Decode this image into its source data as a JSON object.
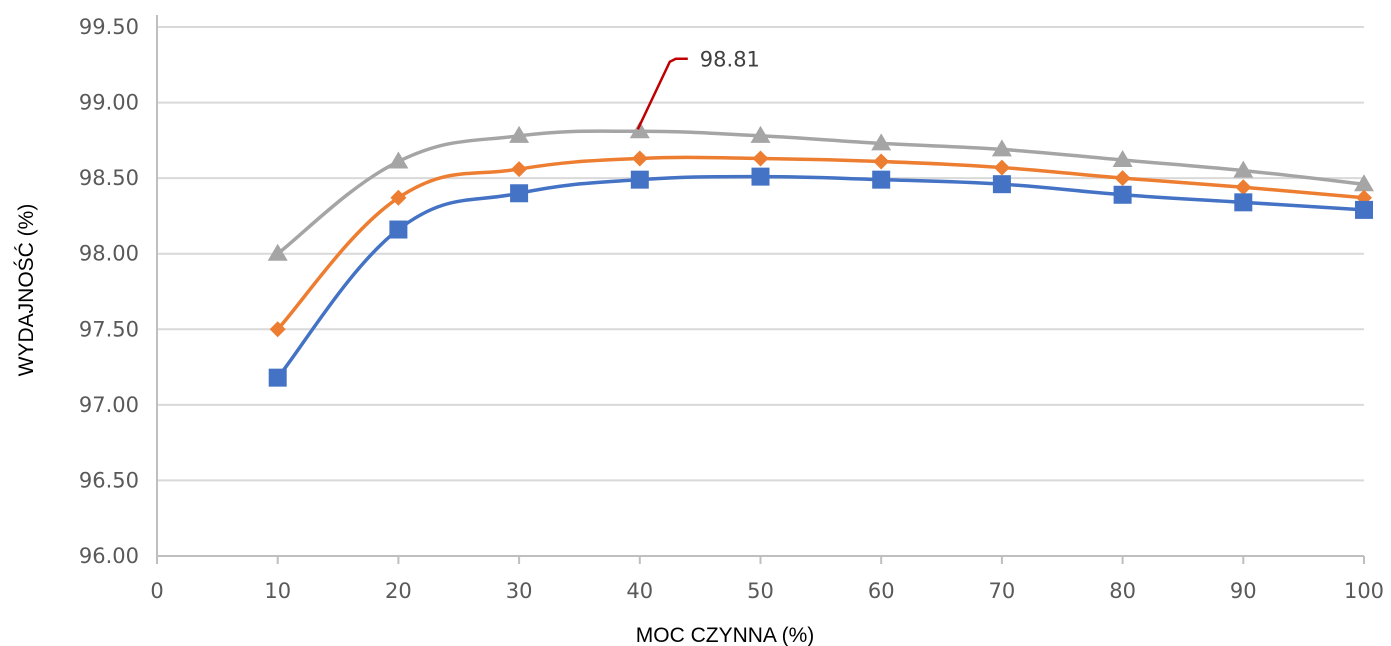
{
  "chart_data": {
    "type": "line",
    "title": "",
    "xlabel": "MOC CZYNNA (%)",
    "ylabel": "WYDAJNOŚĆ (%)",
    "x": [
      10,
      20,
      30,
      40,
      50,
      60,
      70,
      80,
      90,
      100
    ],
    "xlim": [
      0,
      100
    ],
    "ylim": [
      96.0,
      99.5
    ],
    "x_ticks": [
      "0",
      "10",
      "20",
      "30",
      "40",
      "50",
      "60",
      "70",
      "80",
      "90",
      "100"
    ],
    "y_ticks": [
      "96.00",
      "96.50",
      "97.00",
      "97.50",
      "98.00",
      "98.50",
      "99.00",
      "99.50"
    ],
    "grid": "horizontal",
    "legend": "none",
    "series": [
      {
        "color": "#a5a5a5",
        "marker": "triangle",
        "values": [
          98.0,
          98.61,
          98.78,
          98.81,
          98.78,
          98.73,
          98.69,
          98.62,
          98.55,
          98.46
        ]
      },
      {
        "color": "#ed7d31",
        "marker": "diamond",
        "values": [
          97.5,
          98.37,
          98.56,
          98.63,
          98.63,
          98.61,
          98.57,
          98.5,
          98.44,
          98.37
        ]
      },
      {
        "color": "#4472c4",
        "marker": "square",
        "values": [
          97.18,
          98.16,
          98.4,
          98.49,
          98.51,
          98.49,
          98.46,
          98.39,
          98.34,
          98.29
        ]
      }
    ],
    "annotation": {
      "text": "98.81",
      "x": 40,
      "y": 98.81,
      "color": "#c00000"
    }
  }
}
